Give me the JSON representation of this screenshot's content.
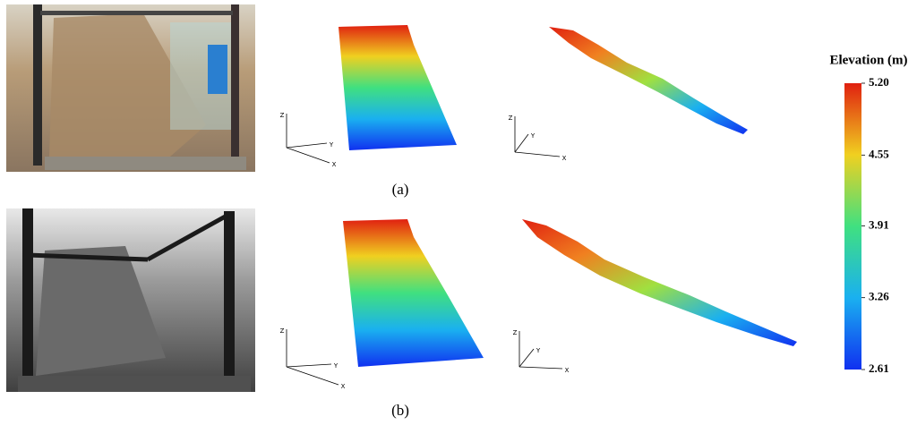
{
  "panels": [
    {
      "label": "(a)",
      "views": [
        {
          "axes": [
            "Z",
            "Y",
            "X"
          ]
        },
        {
          "axes": [
            "Z",
            "Y",
            "X"
          ]
        }
      ]
    },
    {
      "label": "(b)",
      "views": [
        {
          "axes": [
            "Z",
            "Y",
            "X"
          ]
        },
        {
          "axes": [
            "Z",
            "Y",
            "X"
          ]
        }
      ]
    }
  ],
  "colorbar": {
    "title": "Elevation (m)",
    "lim": [
      2.61,
      5.2
    ],
    "ticks": [
      {
        "value": 5.2,
        "label": "5.20"
      },
      {
        "value": 4.55,
        "label": "4.55"
      },
      {
        "value": 3.91,
        "label": "3.91"
      },
      {
        "value": 3.26,
        "label": "3.26"
      },
      {
        "value": 2.61,
        "label": "2.61"
      }
    ]
  }
}
